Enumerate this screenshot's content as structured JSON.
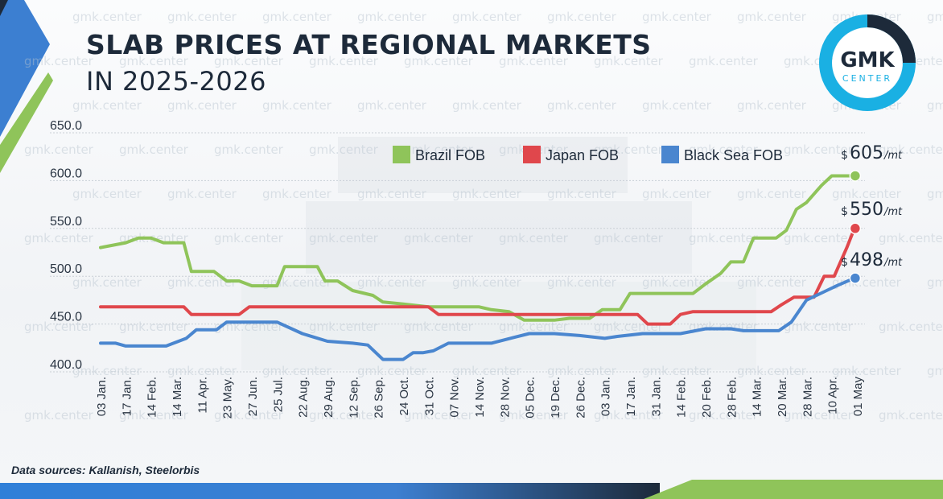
{
  "header": {
    "title_line1": "SLAB PRICES AT REGIONAL MARKETS",
    "title_line2": "IN 2025-2026"
  },
  "logo": {
    "text_top": "GMK",
    "text_bottom": "CENTER",
    "ring_color": "#1ab0e3",
    "ring_accent_color": "#1d2a3a"
  },
  "watermark_text": "gmk.center",
  "footer": {
    "source": "Data sources: Kallanish, Steelorbis"
  },
  "colors": {
    "brazil": "#8fc45a",
    "japan": "#e0474c",
    "black_sea": "#4a86cf",
    "accent_blue": "#2f7fd8",
    "accent_green": "#7cbf4a"
  },
  "chart_data": {
    "type": "line",
    "title": "SLAB PRICES AT REGIONAL MARKETS IN 2025-2026",
    "ylim": [
      400,
      650
    ],
    "yticks": [
      "650.0",
      "600.0",
      "550.0",
      "500.0",
      "450.0",
      "400.0"
    ],
    "legend_position": "top",
    "grid": "horizontal",
    "categories": [
      "03 Jan.",
      "17 Jan.",
      "14 Feb.",
      "14 Mar.",
      "11 Apr.",
      "23 May.",
      "27 Jun.",
      "25 Jul.",
      "22 Aug.",
      "29 Aug.",
      "12 Sep.",
      "26 Sep.",
      "24 Oct.",
      "31 Oct.",
      "07 Nov.",
      "14 Nov.",
      "28 Nov.",
      "05 Dec.",
      "19 Dec.",
      "26 Dec.",
      "03 Jan.",
      "17 Jan.",
      "31 Jan.",
      "14 Feb.",
      "20 Feb.",
      "28 Feb.",
      "14 Mar.",
      "20 Mar.",
      "28 Mar.",
      "10 Apr.",
      "01 May"
    ],
    "series": [
      {
        "name": "Brazil FOB",
        "color": "#8fc45a",
        "end_label": {
          "currency": "$",
          "value": "605",
          "unit": "/mt"
        },
        "points": [
          [
            0,
            530
          ],
          [
            1,
            535
          ],
          [
            1.5,
            540
          ],
          [
            2,
            540
          ],
          [
            2.5,
            535
          ],
          [
            3.3,
            535
          ],
          [
            3.6,
            505
          ],
          [
            4.5,
            505
          ],
          [
            5,
            495
          ],
          [
            5.5,
            495
          ],
          [
            6,
            490
          ],
          [
            7,
            490
          ],
          [
            7.3,
            510
          ],
          [
            8.6,
            510
          ],
          [
            8.9,
            495
          ],
          [
            9.4,
            495
          ],
          [
            10,
            485
          ],
          [
            10.8,
            480
          ],
          [
            11.2,
            473
          ],
          [
            12,
            471
          ],
          [
            13,
            468
          ],
          [
            15,
            468
          ],
          [
            15.5,
            465
          ],
          [
            16.2,
            463
          ],
          [
            16.8,
            454
          ],
          [
            18,
            454
          ],
          [
            18.6,
            456
          ],
          [
            19.4,
            456
          ],
          [
            19.9,
            465
          ],
          [
            20.6,
            465
          ],
          [
            21,
            482
          ],
          [
            23.5,
            482
          ],
          [
            24,
            492
          ],
          [
            24.6,
            503
          ],
          [
            25,
            515
          ],
          [
            25.5,
            515
          ],
          [
            25.9,
            540
          ],
          [
            26.8,
            540
          ],
          [
            27.2,
            548
          ],
          [
            27.6,
            570
          ],
          [
            28,
            577
          ],
          [
            28.6,
            595
          ],
          [
            29,
            605
          ],
          [
            29.9,
            605
          ]
        ]
      },
      {
        "name": "Japan FOB",
        "color": "#e0474c",
        "end_label": {
          "currency": "$",
          "value": "550",
          "unit": "/mt"
        },
        "points": [
          [
            0,
            468
          ],
          [
            3.3,
            468
          ],
          [
            3.6,
            460
          ],
          [
            5.5,
            460
          ],
          [
            5.9,
            468
          ],
          [
            13,
            468
          ],
          [
            13.4,
            460
          ],
          [
            21.3,
            460
          ],
          [
            21.7,
            450
          ],
          [
            22.6,
            450
          ],
          [
            23,
            460
          ],
          [
            23.5,
            463
          ],
          [
            26.6,
            463
          ],
          [
            27,
            470
          ],
          [
            27.5,
            478
          ],
          [
            28.3,
            478
          ],
          [
            28.7,
            500
          ],
          [
            29.1,
            500
          ],
          [
            29.6,
            530
          ],
          [
            29.9,
            550
          ]
        ]
      },
      {
        "name": "Black Sea FOB",
        "color": "#4a86cf",
        "end_label": {
          "currency": "$",
          "value": "498",
          "unit": "/mt"
        },
        "points": [
          [
            0,
            430
          ],
          [
            0.6,
            430
          ],
          [
            1,
            427
          ],
          [
            2.6,
            427
          ],
          [
            3.4,
            435
          ],
          [
            3.8,
            444
          ],
          [
            4.6,
            444
          ],
          [
            5,
            452
          ],
          [
            7,
            452
          ],
          [
            8,
            440
          ],
          [
            9,
            432
          ],
          [
            10,
            430
          ],
          [
            10.6,
            428
          ],
          [
            11.2,
            413
          ],
          [
            12,
            413
          ],
          [
            12.4,
            420
          ],
          [
            12.8,
            420
          ],
          [
            13.2,
            422
          ],
          [
            13.8,
            430
          ],
          [
            15.5,
            430
          ],
          [
            16.4,
            436
          ],
          [
            17,
            440
          ],
          [
            18,
            440
          ],
          [
            19,
            438
          ],
          [
            20,
            435
          ],
          [
            20.5,
            437
          ],
          [
            21.5,
            440
          ],
          [
            23,
            440
          ],
          [
            24,
            445
          ],
          [
            25,
            445
          ],
          [
            25.5,
            443
          ],
          [
            26.9,
            443
          ],
          [
            27.4,
            452
          ],
          [
            28,
            475
          ],
          [
            28.8,
            485
          ],
          [
            29.2,
            490
          ],
          [
            29.9,
            498
          ]
        ]
      }
    ]
  }
}
